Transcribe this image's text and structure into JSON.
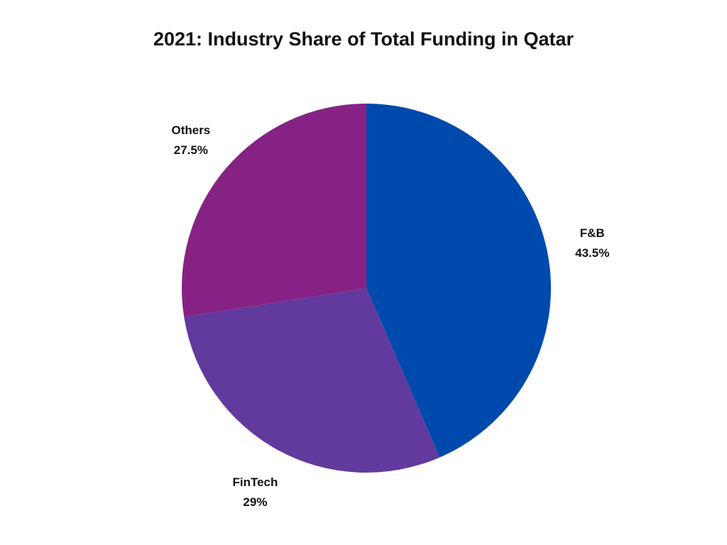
{
  "chart_data": {
    "type": "pie",
    "title": "2021: Industry Share of Total Funding in Qatar",
    "slices": [
      {
        "label": "F&B",
        "value_label": "43.5%",
        "value": 43.5,
        "color": "#004aad"
      },
      {
        "label": "FinTech",
        "value_label": "29%",
        "value": 29,
        "color": "#623a9e"
      },
      {
        "label": "Others",
        "value_label": "27.5%",
        "value": 27.5,
        "color": "#862283"
      }
    ],
    "start": "12 o'clock",
    "direction": "clockwise",
    "legend": "none"
  }
}
